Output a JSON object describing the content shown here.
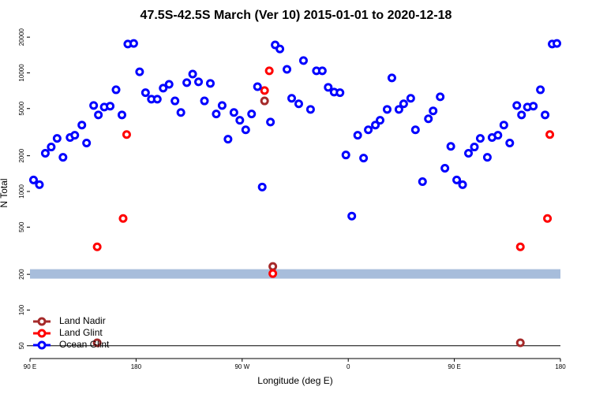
{
  "chart_data": {
    "type": "scatter",
    "title": "47.5S-42.5S March (Ver 10)   2015-01-01 to 2020-12-18",
    "x_label": "Longitude (deg E)",
    "y_label": "N Total",
    "xlim": [
      90,
      540
    ],
    "xticks": [
      {
        "value": 90,
        "label": "90 E"
      },
      180,
      {
        "value": 270,
        "label": "90 W"
      },
      {
        "value": 360,
        "label": "0"
      },
      {
        "value": 450,
        "label": "90 E"
      },
      {
        "value": 540,
        "label": "180"
      }
    ],
    "ylim": [
      39,
      26000
    ],
    "log_y": true,
    "yticks": [
      50,
      100,
      200,
      500,
      1000,
      2000,
      5000,
      10000,
      20000
    ],
    "hline": 50,
    "band": [
      184,
      221
    ],
    "band_color": "#a7bddb",
    "legend": "bottom-left",
    "series": [
      {
        "name": "Land Nadir",
        "color": "#a52a2a",
        "x": [
          147,
          289,
          296,
          506
        ],
        "values": [
          53,
          5800,
          233,
          53
        ]
      },
      {
        "name": "Land Glint",
        "color": "#ff0000",
        "x": [
          147,
          169,
          172,
          289,
          293,
          296,
          506,
          529,
          531
        ],
        "values": [
          341,
          592,
          3020,
          7100,
          10400,
          203,
          341,
          592,
          3020
        ]
      },
      {
        "name": "Ocean Glint",
        "color": "#0000ff",
        "x": [
          93,
          98,
          103,
          108,
          113,
          118,
          124,
          128,
          134,
          138,
          144,
          148,
          153,
          158,
          163,
          168,
          173,
          178,
          183,
          188,
          193,
          198,
          203,
          208,
          213,
          218,
          223,
          228,
          233,
          238,
          243,
          248,
          253,
          258,
          263,
          268,
          273,
          278,
          283,
          287,
          294,
          298,
          302,
          308,
          312,
          318,
          322,
          328,
          333,
          338,
          343,
          348,
          353,
          358,
          363,
          368,
          373,
          377,
          383,
          387,
          393,
          397,
          403,
          407,
          413,
          417,
          423,
          428,
          432,
          438,
          442,
          447,
          452,
          457,
          462,
          467,
          472,
          478,
          482,
          487,
          492,
          497,
          503,
          507,
          512,
          517,
          523,
          527,
          533,
          537
        ],
        "values": [
          1250,
          1140,
          2100,
          2370,
          2800,
          1940,
          2850,
          2980,
          3630,
          2560,
          5310,
          4420,
          5150,
          5240,
          7200,
          4420,
          17500,
          17700,
          10200,
          6800,
          6000,
          6000,
          7430,
          8000,
          5800,
          4630,
          8270,
          9770,
          8400,
          5800,
          8150,
          4500,
          5310,
          2760,
          4630,
          3980,
          3310,
          4500,
          7650,
          1090,
          3850,
          17200,
          15900,
          10700,
          6100,
          5480,
          12700,
          4920,
          10400,
          10400,
          7550,
          6880,
          6800,
          2030,
          620,
          2980,
          1910,
          3310,
          3630,
          3980,
          4920,
          9060,
          4920,
          5480,
          6100,
          3310,
          1210,
          4100,
          4780,
          6280,
          1570,
          2400,
          1250,
          1140,
          2100,
          2370,
          2800,
          1940,
          2850,
          2980,
          3630,
          2560,
          5310,
          4420,
          5150,
          5240,
          7200,
          4420,
          17500,
          17700
        ]
      }
    ]
  }
}
